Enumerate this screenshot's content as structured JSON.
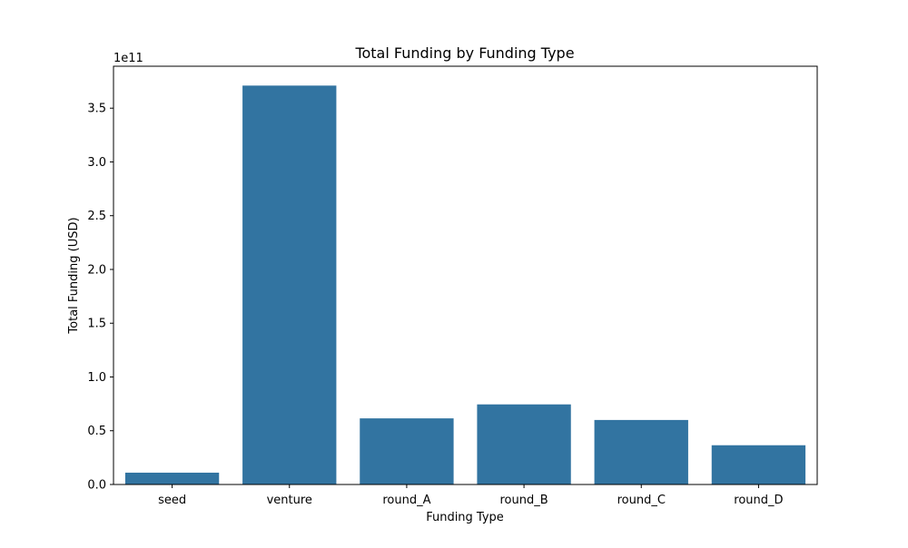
{
  "chart_data": {
    "type": "bar",
    "title": "Total Funding by Funding Type",
    "xlabel": "Funding Type",
    "ylabel": "Total Funding (USD)",
    "y_multiplier_label": "1e11",
    "categories": [
      "seed",
      "venture",
      "round_A",
      "round_B",
      "round_C",
      "round_D"
    ],
    "values": [
      11000000000,
      371000000000,
      61500000000,
      74500000000,
      60000000000,
      36500000000
    ],
    "ylim": [
      0,
      389000000000
    ],
    "y_ticks": [
      0,
      50000000000,
      100000000000,
      150000000000,
      200000000000,
      250000000000,
      300000000000,
      350000000000
    ],
    "y_tick_labels": [
      "0.0",
      "0.5",
      "1.0",
      "1.5",
      "2.0",
      "2.5",
      "3.0",
      "3.5"
    ],
    "grid": false,
    "legend": "none",
    "bar_color": "#3274a1"
  }
}
